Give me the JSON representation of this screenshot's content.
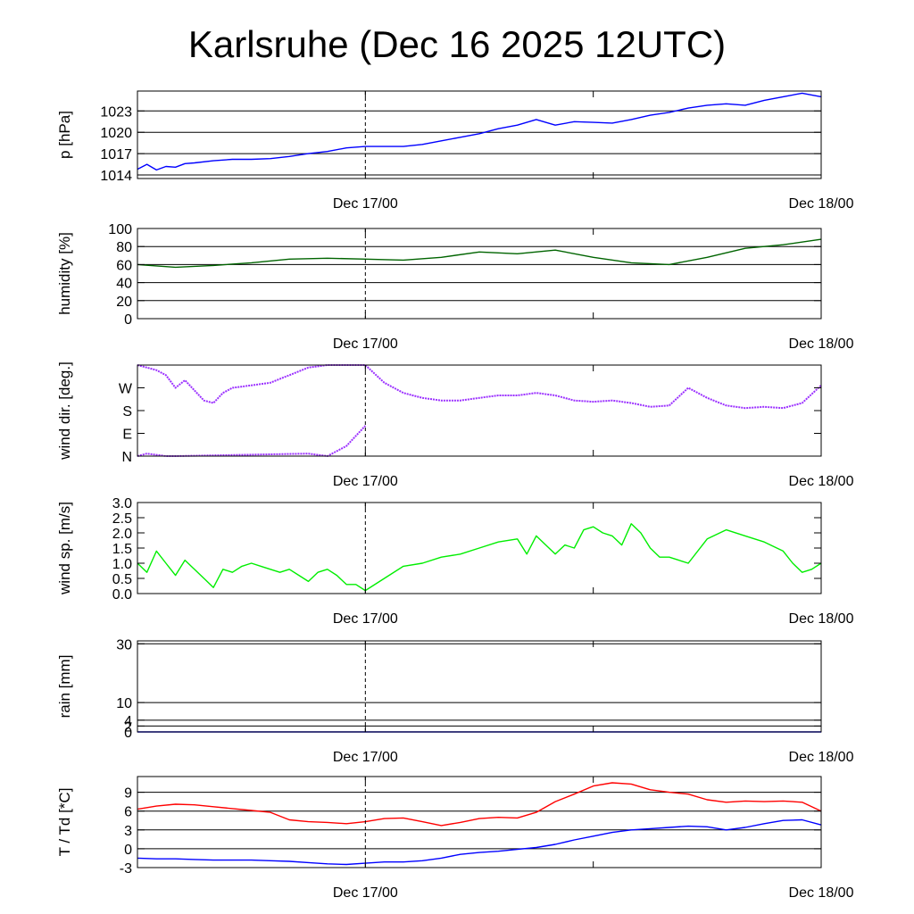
{
  "title": "Karlsruhe (Dec 16 2025 12UTC)",
  "chart_data": [
    {
      "type": "line",
      "ylabel": "p [hPa]",
      "ylim": [
        1013.5,
        1025.8
      ],
      "yticks": [
        1014,
        1017,
        1020,
        1023
      ],
      "ytick_labels": [
        "1014",
        "1017",
        "1020",
        "1023"
      ],
      "hgrid": [
        1014,
        1017,
        1020,
        1023
      ],
      "xtick_labels": [
        "Dec 17/00",
        "Dec 18/00"
      ],
      "series": [
        {
          "color": "#0000ff",
          "x": [
            0,
            0.5,
            1,
            1.5,
            2,
            2.5,
            3,
            4,
            5,
            6,
            7,
            8,
            9,
            10,
            11,
            12,
            13,
            14,
            15,
            16,
            17,
            18,
            19,
            20,
            21,
            22,
            23,
            24,
            25,
            26,
            27,
            28,
            29,
            30,
            31,
            32,
            33,
            34,
            35,
            36
          ],
          "y": [
            1014.8,
            1015.5,
            1014.7,
            1015.2,
            1015.1,
            1015.6,
            1015.7,
            1016.0,
            1016.2,
            1016.2,
            1016.3,
            1016.6,
            1017.0,
            1017.3,
            1017.8,
            1018.0,
            1018.0,
            1018.0,
            1018.3,
            1018.8,
            1019.3,
            1019.8,
            1020.5,
            1021.0,
            1021.8,
            1021.0,
            1021.5,
            1021.4,
            1021.3,
            1021.8,
            1022.4,
            1022.8,
            1023.4,
            1023.8,
            1024.0,
            1023.8,
            1024.5,
            1025.0,
            1025.5,
            1025.0
          ]
        }
      ]
    },
    {
      "type": "line",
      "ylabel": "humidity [%]",
      "ylim": [
        0,
        100
      ],
      "yticks": [
        0,
        20,
        40,
        60,
        80,
        100
      ],
      "ytick_labels": [
        "0",
        "20",
        "40",
        "60",
        "80",
        "100"
      ],
      "hgrid": [
        20,
        40,
        60,
        80
      ],
      "xtick_labels": [
        "Dec 17/00",
        "Dec 18/00"
      ],
      "series": [
        {
          "color": "#006400",
          "x": [
            0,
            2,
            4,
            6,
            8,
            10,
            12,
            14,
            16,
            18,
            20,
            22,
            24,
            26,
            28,
            30,
            32,
            34,
            36
          ],
          "y": [
            60,
            57,
            59,
            62,
            66,
            67,
            66,
            65,
            68,
            74,
            72,
            76,
            68,
            62,
            60,
            68,
            78,
            82,
            88
          ]
        }
      ]
    },
    {
      "type": "scatter",
      "ylabel": "wind dir. [deg.]",
      "ylim": [
        0,
        360
      ],
      "yticks": [
        0,
        90,
        180,
        270
      ],
      "ytick_labels": [
        "N",
        "E",
        "S",
        "W"
      ],
      "hgrid": [],
      "xtick_labels": [
        "Dec 17/00",
        "Dec 18/00"
      ],
      "series": [
        {
          "color": "#9b30ff",
          "x": [
            0,
            0.5,
            1,
            1.5,
            2,
            2.5,
            3,
            3.5,
            4,
            4.5,
            5,
            6,
            7,
            8,
            9,
            10,
            11,
            12,
            13,
            14,
            15,
            16,
            17,
            18,
            19,
            20,
            21,
            22,
            23,
            24,
            25,
            26,
            27,
            28,
            29,
            30,
            31,
            32,
            33,
            34,
            35,
            36
          ],
          "y": [
            360,
            350,
            340,
            320,
            270,
            300,
            260,
            220,
            210,
            250,
            270,
            280,
            290,
            320,
            350,
            360,
            360,
            360,
            290,
            250,
            230,
            220,
            220,
            230,
            240,
            240,
            250,
            240,
            220,
            215,
            220,
            210,
            195,
            200,
            270,
            230,
            200,
            190,
            195,
            190,
            210,
            280
          ]
        },
        {
          "color": "#9b30ff",
          "x": [
            0,
            0.5,
            1,
            1.5,
            2,
            9,
            10,
            11,
            12
          ],
          "y": [
            0,
            10,
            5,
            0,
            0,
            10,
            0,
            40,
            120
          ]
        }
      ]
    },
    {
      "type": "line",
      "ylabel": "wind sp. [m/s]",
      "ylim": [
        0,
        3.0
      ],
      "yticks": [
        0,
        0.5,
        1.0,
        1.5,
        2.0,
        2.5,
        3.0
      ],
      "ytick_labels": [
        "0.0",
        "0.5",
        "1.0",
        "1.5",
        "2.0",
        "2.5",
        "3.0"
      ],
      "hgrid": [],
      "xtick_labels": [
        "Dec 17/00",
        "Dec 18/00"
      ],
      "series": [
        {
          "color": "#00ee00",
          "x": [
            0,
            0.5,
            1,
            1.5,
            2,
            2.5,
            3,
            3.5,
            4,
            4.5,
            5,
            5.5,
            6,
            6.5,
            7,
            7.5,
            8,
            8.5,
            9,
            9.5,
            10,
            10.5,
            11,
            11.5,
            12,
            13,
            14,
            15,
            16,
            17,
            18,
            19,
            20,
            20.5,
            21,
            21.5,
            22,
            22.5,
            23,
            23.5,
            24,
            24.5,
            25,
            25.5,
            26,
            26.5,
            27,
            27.5,
            28,
            28.5,
            29,
            30,
            31,
            32,
            33,
            34,
            34.5,
            35,
            35.5,
            36
          ],
          "y": [
            1.0,
            0.7,
            1.4,
            1.0,
            0.6,
            1.1,
            0.8,
            0.5,
            0.2,
            0.8,
            0.7,
            0.9,
            1.0,
            0.9,
            0.8,
            0.7,
            0.8,
            0.6,
            0.4,
            0.7,
            0.8,
            0.6,
            0.3,
            0.3,
            0.1,
            0.5,
            0.9,
            1.0,
            1.2,
            1.3,
            1.5,
            1.7,
            1.8,
            1.3,
            1.9,
            1.6,
            1.3,
            1.6,
            1.5,
            2.1,
            2.2,
            2.0,
            1.9,
            1.6,
            2.3,
            2.0,
            1.5,
            1.2,
            1.2,
            1.1,
            1.0,
            1.8,
            2.1,
            1.9,
            1.7,
            1.4,
            1.0,
            0.7,
            0.8,
            1.0
          ]
        }
      ]
    },
    {
      "type": "line",
      "ylabel": "rain [mm]",
      "ylim": [
        0,
        31
      ],
      "yticks": [
        0,
        2,
        4,
        10,
        30
      ],
      "ytick_labels": [
        "0",
        "2",
        "4",
        "10",
        "30"
      ],
      "hgrid": [
        2,
        4,
        10,
        30
      ],
      "xtick_labels": [
        "Dec 17/00",
        "Dec 18/00"
      ],
      "series": [
        {
          "color": "#0000ff",
          "x": [
            0,
            36
          ],
          "y": [
            0,
            0
          ]
        }
      ]
    },
    {
      "type": "line",
      "ylabel": "T / Td [*C]",
      "ylim": [
        -3,
        11.5
      ],
      "yticks": [
        -3,
        0,
        3,
        6,
        9
      ],
      "ytick_labels": [
        "-3",
        "0",
        "3",
        "6",
        "9"
      ],
      "hgrid": [
        -3,
        0,
        3,
        6,
        9
      ],
      "xtick_labels": [
        "Dec 17/00",
        "Dec 18/00"
      ],
      "series": [
        {
          "color": "#ff0000",
          "x": [
            0,
            1,
            2,
            3,
            4,
            5,
            6,
            7,
            8,
            9,
            10,
            11,
            12,
            13,
            14,
            15,
            16,
            17,
            18,
            19,
            20,
            21,
            22,
            23,
            24,
            25,
            26,
            27,
            28,
            29,
            30,
            31,
            32,
            33,
            34,
            35,
            36
          ],
          "y": [
            6.3,
            6.8,
            7.1,
            7.0,
            6.7,
            6.4,
            6.1,
            5.8,
            4.6,
            4.3,
            4.2,
            4.0,
            4.3,
            4.8,
            4.9,
            4.3,
            3.7,
            4.2,
            4.8,
            5.0,
            4.9,
            5.8,
            7.5,
            8.7,
            10.0,
            10.5,
            10.3,
            9.4,
            9.0,
            8.7,
            7.8,
            7.4,
            7.6,
            7.5,
            7.6,
            7.4,
            6.0
          ]
        },
        {
          "color": "#0000ff",
          "x": [
            0,
            1,
            2,
            3,
            4,
            5,
            6,
            7,
            8,
            9,
            10,
            11,
            12,
            13,
            14,
            15,
            16,
            17,
            18,
            19,
            20,
            21,
            22,
            23,
            24,
            25,
            26,
            27,
            28,
            29,
            30,
            31,
            32,
            33,
            34,
            35,
            36
          ],
          "y": [
            -1.5,
            -1.6,
            -1.6,
            -1.7,
            -1.8,
            -1.8,
            -1.8,
            -1.9,
            -2.0,
            -2.2,
            -2.4,
            -2.5,
            -2.3,
            -2.1,
            -2.1,
            -1.9,
            -1.5,
            -0.9,
            -0.6,
            -0.4,
            -0.1,
            0.2,
            0.7,
            1.4,
            2.0,
            2.6,
            3.0,
            3.2,
            3.4,
            3.6,
            3.5,
            3.0,
            3.4,
            4.0,
            4.5,
            4.6,
            3.8
          ]
        }
      ]
    }
  ]
}
